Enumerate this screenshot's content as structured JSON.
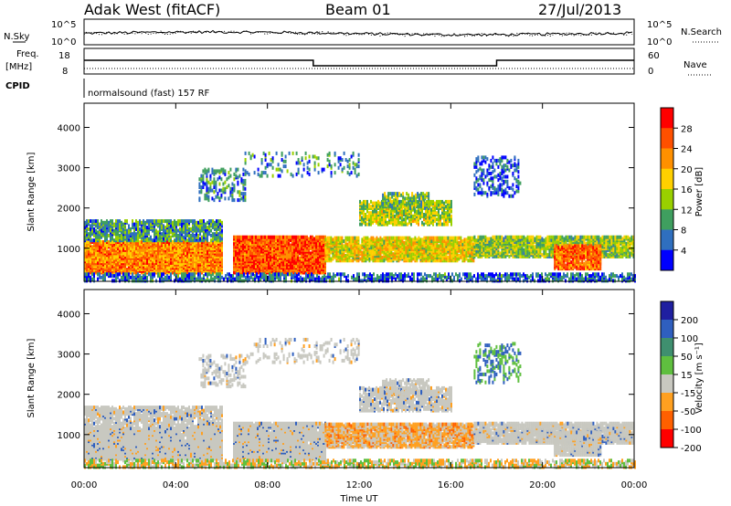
{
  "header": {
    "station": "Adak West (fitACF)",
    "beam": "Beam 01",
    "date": "27/Jul/2013"
  },
  "top_panels": {
    "nsky_label": "N.Sky",
    "nsky_ticks": [
      "10^5",
      "10^0"
    ],
    "nsearch_label": "N.Search",
    "nsearch_ticks": [
      "10^5",
      "10^0"
    ],
    "freq_label": "Freq.",
    "freq_unit": "[MHz]",
    "freq_ticks": [
      "18",
      "8"
    ],
    "nave_label": "Nave",
    "nave_ticks": [
      "60",
      "0"
    ],
    "cpid_label": "CPID",
    "cpid_value": "normalsound (fast) 157 RF"
  },
  "chart_data": [
    {
      "type": "heatmap",
      "name": "power",
      "ylabel": "Slant Range [km]",
      "ylim": [
        180,
        4600
      ],
      "yticks": [
        1000,
        2000,
        3000,
        4000
      ],
      "colorbar_label": "Power [dB]",
      "colorbar_ticks": [
        "28",
        "24",
        "20",
        "16",
        "12",
        "8",
        "4"
      ],
      "colors": [
        "#ff0000",
        "#ff5000",
        "#ff9000",
        "#ffd000",
        "#99d000",
        "#3f9f5f",
        "#2f6fbf",
        "#0000ff"
      ]
    },
    {
      "type": "heatmap",
      "name": "velocity",
      "ylabel": "Slant Range [km]",
      "ylim": [
        180,
        4600
      ],
      "yticks": [
        1000,
        2000,
        3000,
        4000
      ],
      "colorbar_label": "Velocity [m s⁻¹]",
      "colorbar_ticks": [
        "200",
        "100",
        "50",
        "15",
        "-15",
        "-50",
        "-100",
        "-200"
      ],
      "colors": [
        "#1f1fa0",
        "#2f5fbf",
        "#3f8f6f",
        "#5fbf3f",
        "#c8c8c0",
        "#ffa020",
        "#ff6000",
        "#ff0000"
      ]
    }
  ],
  "x_axis": {
    "ticks": [
      "00:00",
      "04:00",
      "08:00",
      "12:00",
      "16:00",
      "20:00",
      "00:00"
    ],
    "label": "Time UT",
    "hours": [
      0,
      4,
      8,
      12,
      16,
      20,
      24
    ]
  }
}
